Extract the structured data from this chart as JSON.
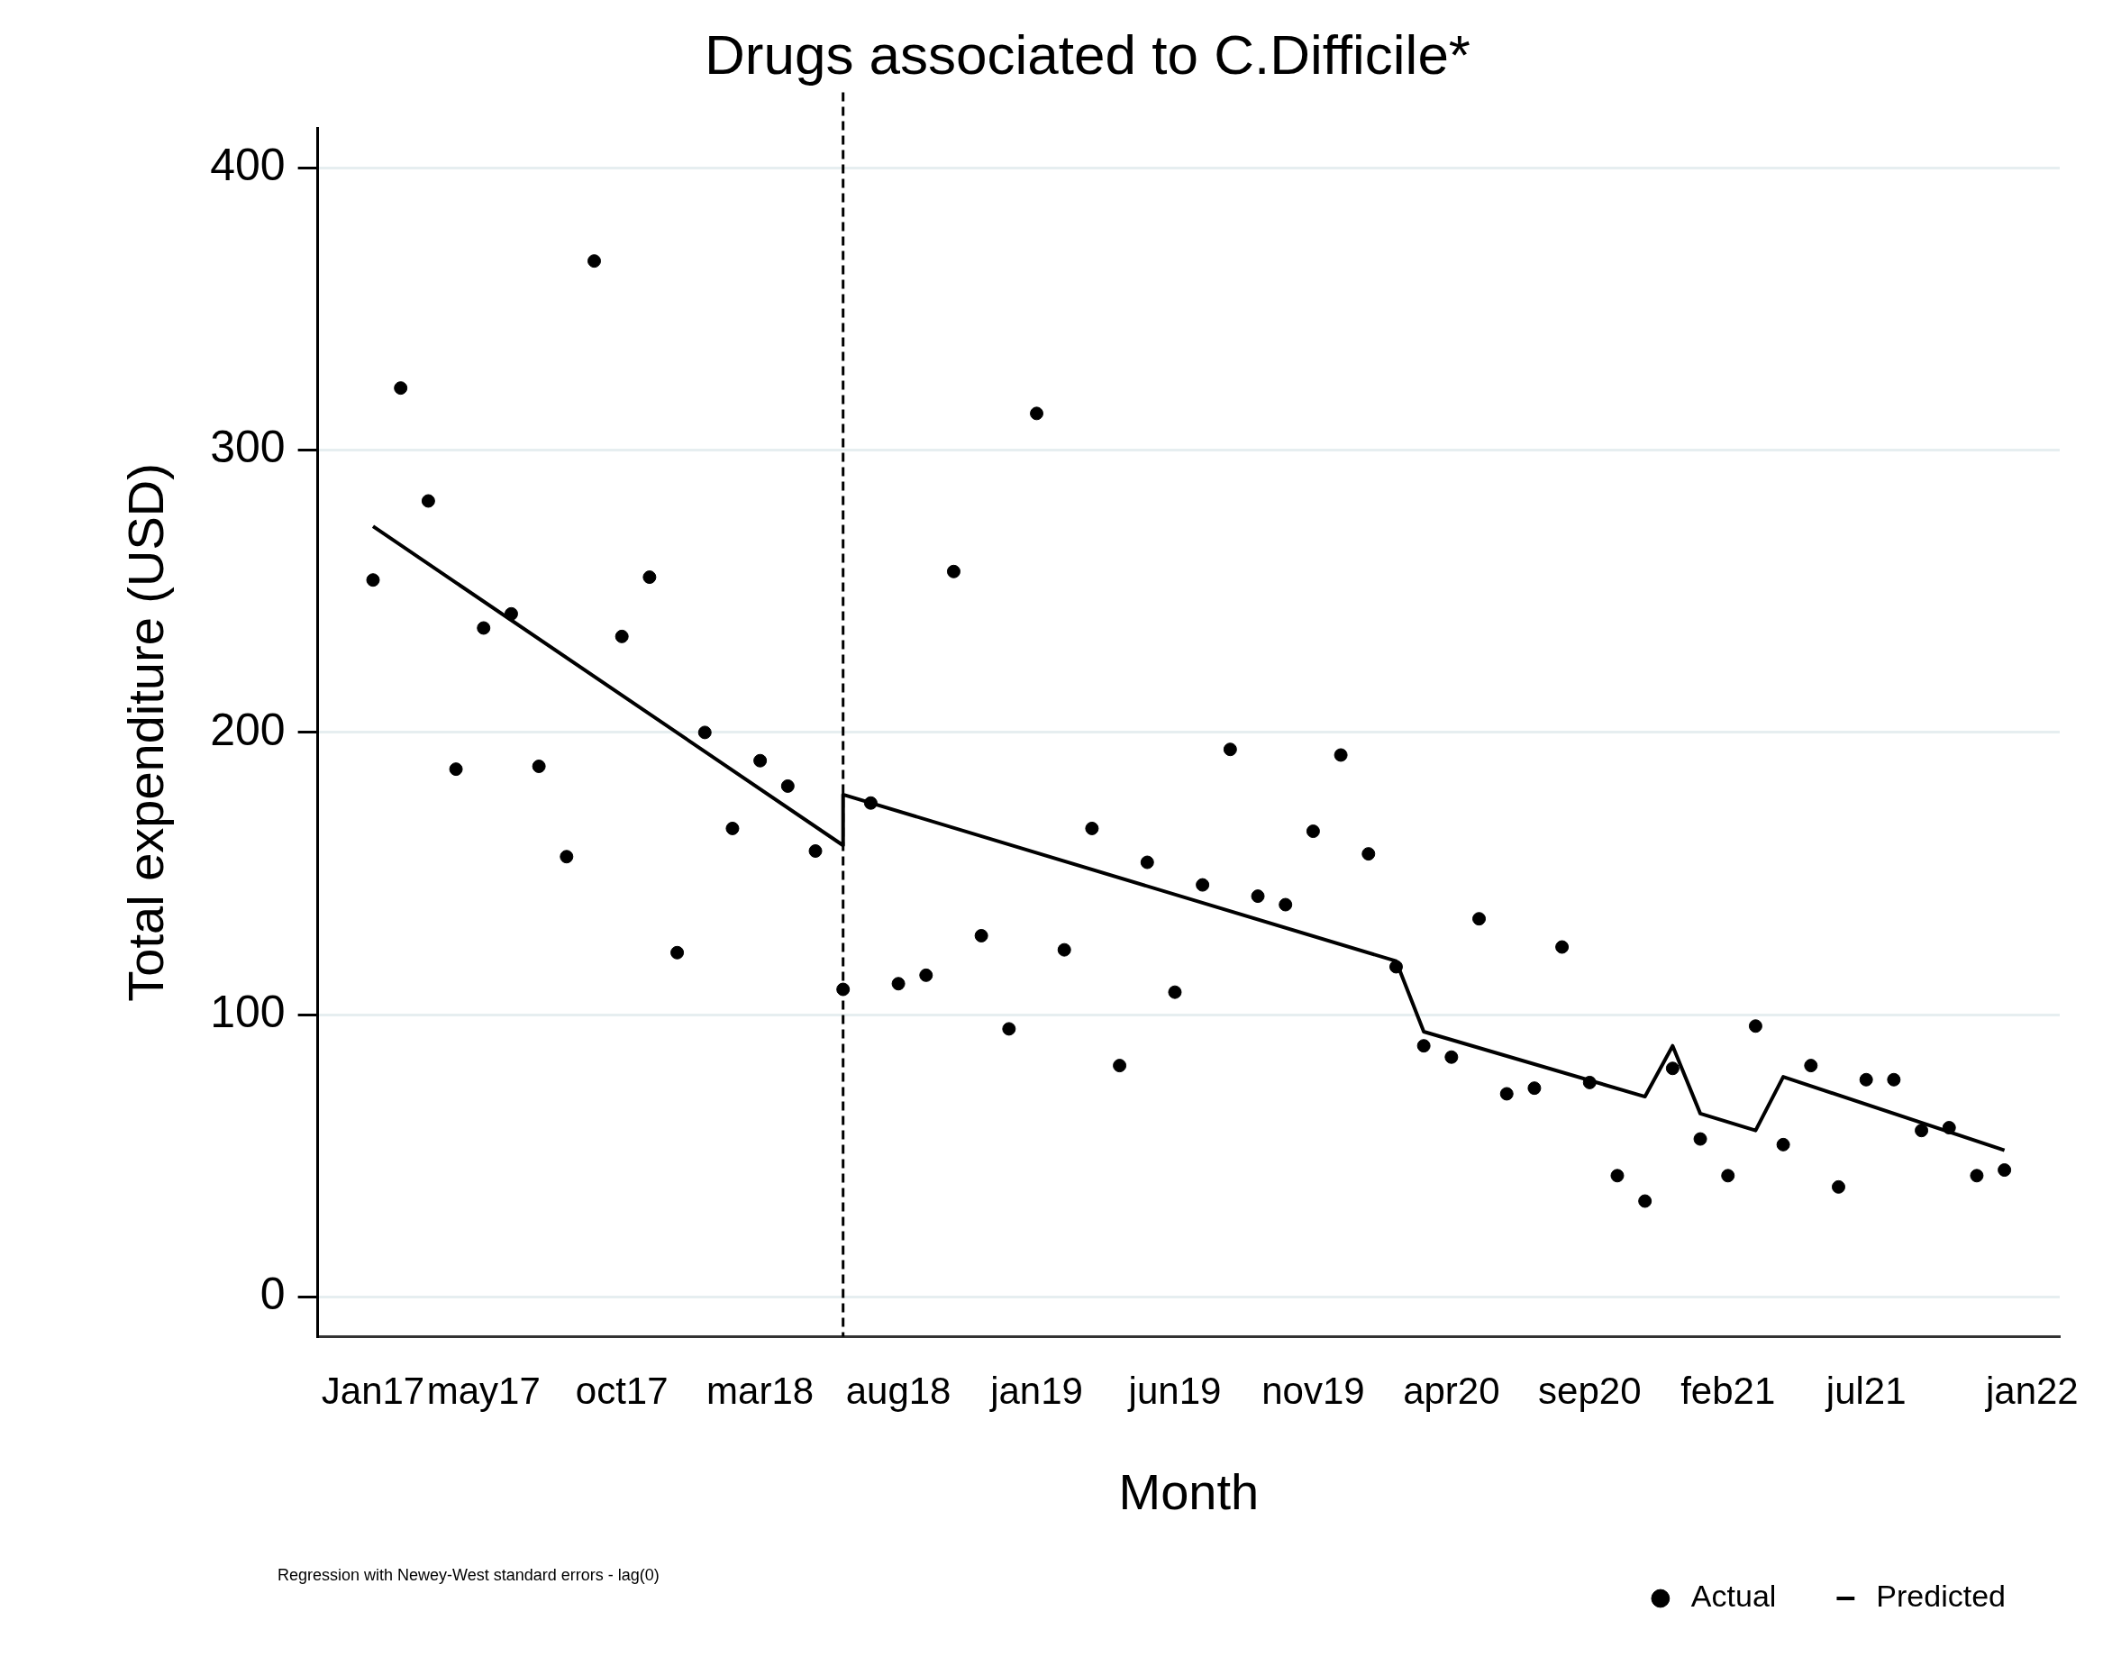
{
  "chart_data": {
    "type": "scatter",
    "title": "Drugs associated to C.Difficile*",
    "xlabel": "Month",
    "ylabel": "Total expenditure (USD)",
    "xlim": [
      "2016-11",
      "2022-02"
    ],
    "xticks": [
      {
        "value": "2017-01",
        "label": "Jan17"
      },
      {
        "value": "2017-05",
        "label": "may17"
      },
      {
        "value": "2017-10",
        "label": "oct17"
      },
      {
        "value": "2018-03",
        "label": "mar18"
      },
      {
        "value": "2018-08",
        "label": "aug18"
      },
      {
        "value": "2019-01",
        "label": "jan19"
      },
      {
        "value": "2019-06",
        "label": "jun19"
      },
      {
        "value": "2019-11",
        "label": "nov19"
      },
      {
        "value": "2020-04",
        "label": "apr20"
      },
      {
        "value": "2020-09",
        "label": "sep20"
      },
      {
        "value": "2021-02",
        "label": "feb21"
      },
      {
        "value": "2021-07",
        "label": "jul21"
      },
      {
        "value": "2022-01",
        "label": "jan22"
      }
    ],
    "ylim": [
      -14,
      414
    ],
    "yticks": [
      0,
      100,
      200,
      300,
      400
    ],
    "grid": "y",
    "legend": "bottom right",
    "series": [
      {
        "name": "Actual",
        "marker": "circle",
        "color": "#000000",
        "x": [
          "2017-01",
          "2017-02",
          "2017-03",
          "2017-04",
          "2017-05",
          "2017-06",
          "2017-07",
          "2017-08",
          "2017-09",
          "2017-10",
          "2017-11",
          "2017-12",
          "2018-01",
          "2018-02",
          "2018-03",
          "2018-04",
          "2018-05",
          "2018-06",
          "2018-07",
          "2018-08",
          "2018-09",
          "2018-10",
          "2018-11",
          "2018-12",
          "2019-01",
          "2019-02",
          "2019-03",
          "2019-04",
          "2019-05",
          "2019-06",
          "2019-07",
          "2019-08",
          "2019-09",
          "2019-10",
          "2019-11",
          "2019-12",
          "2020-01",
          "2020-02",
          "2020-03",
          "2020-04",
          "2020-05",
          "2020-06",
          "2020-07",
          "2020-08",
          "2020-09",
          "2020-10",
          "2020-11",
          "2020-12",
          "2021-01",
          "2021-02",
          "2021-03",
          "2021-04",
          "2021-05",
          "2021-06",
          "2021-07",
          "2021-08",
          "2021-09",
          "2021-10",
          "2021-11",
          "2021-12"
        ],
        "values": [
          254,
          322,
          282,
          187,
          237,
          242,
          188,
          156,
          367,
          234,
          255,
          122,
          200,
          166,
          190,
          181,
          158,
          109,
          175,
          111,
          114,
          257,
          128,
          95,
          313,
          123,
          166,
          82,
          154,
          108,
          146,
          194,
          142,
          139,
          165,
          192,
          157,
          117,
          89,
          85,
          134,
          72,
          74,
          124,
          76,
          43,
          34,
          81,
          56,
          43,
          96,
          54,
          82,
          39,
          77,
          77,
          59,
          60,
          43,
          45
        ]
      },
      {
        "name": "Predicted",
        "type": "line",
        "marker": "none",
        "color": "#000000",
        "x": [
          "2017-01",
          "2018-06",
          "2018-06",
          "2020-02",
          "2020-03",
          "2020-11",
          "2020-12",
          "2021-01",
          "2021-03",
          "2021-04",
          "2021-12"
        ],
        "values": [
          273,
          160,
          178,
          119,
          94,
          71,
          89,
          65,
          59,
          78,
          52
        ]
      }
    ],
    "ref_lines": [
      {
        "axis": "x",
        "value": "2018-06",
        "line_style": "dashed",
        "color": "#000000"
      }
    ],
    "annotations": [
      "Regression with Newey-West standard errors - lag(0)"
    ]
  }
}
